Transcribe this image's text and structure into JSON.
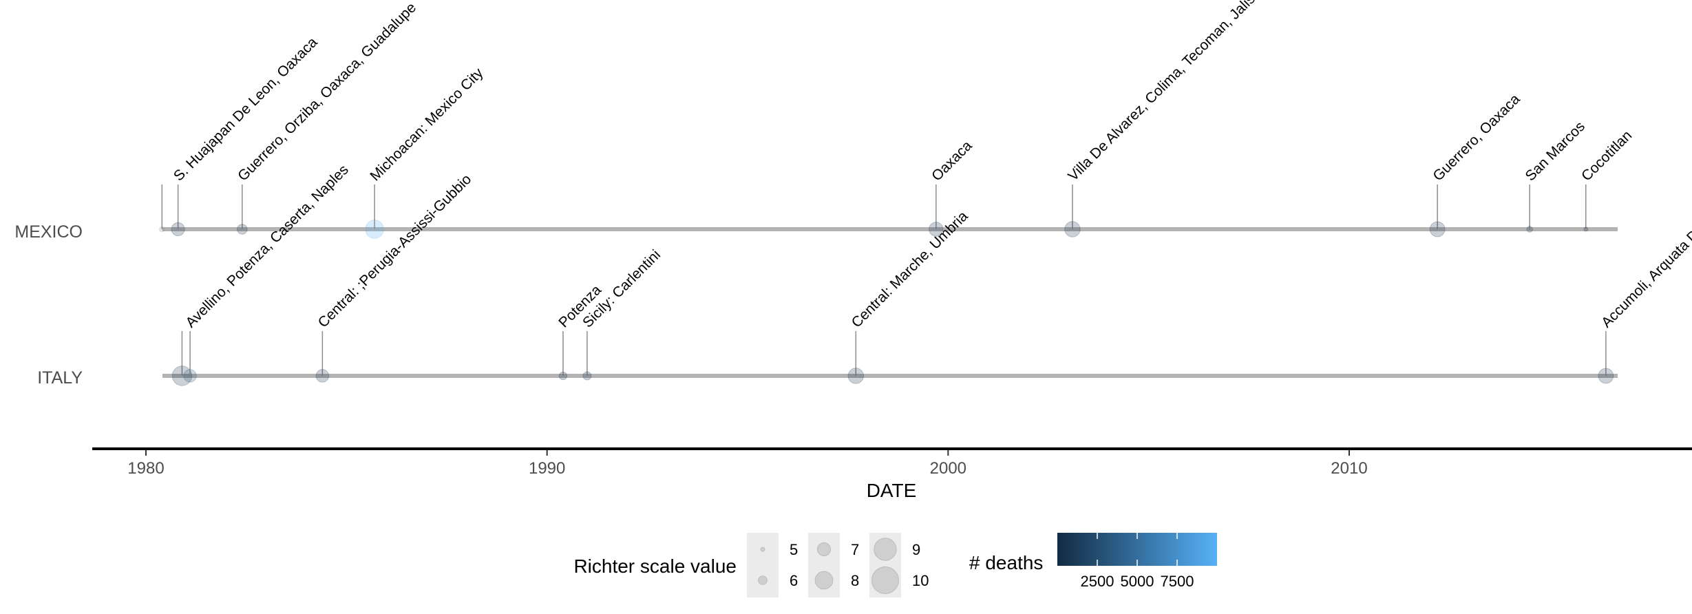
{
  "chart_data": {
    "type": "timeline",
    "xlabel": "DATE",
    "xlim": [
      1978.8,
      2018.6
    ],
    "x_ticks": [
      1980,
      1990,
      2000,
      2010
    ],
    "countries": [
      "MEXICO",
      "ITALY"
    ],
    "events": [
      {
        "country": "MEXICO",
        "date": 1980.4,
        "label": "",
        "richter": 5.2,
        "deaths": null
      },
      {
        "country": "MEXICO",
        "date": 1980.8,
        "label": "S. Huajapan De Leon, Oaxaca",
        "richter": 7.0,
        "deaths": 300
      },
      {
        "country": "MEXICO",
        "date": 1982.4,
        "label": "Guerrero, Orziba, Oaxaca, Guadalupe",
        "richter": 6.3,
        "deaths": 100
      },
      {
        "country": "MEXICO",
        "date": 1985.7,
        "label": "Michoacan:  Mexico City",
        "richter": 8.1,
        "deaths": 9500
      },
      {
        "country": "MEXICO",
        "date": 1999.7,
        "label": "Oaxaca",
        "richter": 7.2,
        "deaths": 35
      },
      {
        "country": "MEXICO",
        "date": 2003.1,
        "label": "Villa De Alvarez, Colima, Tecoman, Jalisco",
        "richter": 7.5,
        "deaths": 29
      },
      {
        "country": "MEXICO",
        "date": 2012.2,
        "label": "Guerrero, Oaxaca",
        "richter": 7.4,
        "deaths": 2
      },
      {
        "country": "MEXICO",
        "date": 2014.5,
        "label": "San Marcos",
        "richter": 5.4,
        "deaths": 1
      },
      {
        "country": "MEXICO",
        "date": 2015.9,
        "label": "Cocotitlan",
        "richter": 5.0,
        "deaths": 1
      },
      {
        "country": "ITALY",
        "date": 1980.9,
        "label": "",
        "richter": 8.4,
        "deaths": 300
      },
      {
        "country": "ITALY",
        "date": 1981.1,
        "label": "Avellino, Potenza, Caserta, Naples",
        "richter": 6.9,
        "deaths": 2735
      },
      {
        "country": "ITALY",
        "date": 1984.4,
        "label": "Central:  ;Perugia-Assissi-Gubbio",
        "richter": 6.9,
        "deaths": 3
      },
      {
        "country": "ITALY",
        "date": 1990.4,
        "label": "Potenza",
        "richter": 5.8,
        "deaths": 2
      },
      {
        "country": "ITALY",
        "date": 1991.0,
        "label": "Sicily:  Carlentini",
        "richter": 5.9,
        "deaths": 19
      },
      {
        "country": "ITALY",
        "date": 1997.7,
        "label": "Central:  Marche, Umbria",
        "richter": 7.5,
        "deaths": 11
      },
      {
        "country": "ITALY",
        "date": 2016.4,
        "label": "Accumoli, Arquata Del Tronto",
        "richter": 7.4,
        "deaths": 299
      }
    ],
    "legend": {
      "size": {
        "title": "Richter scale value",
        "items": [
          {
            "label": "5",
            "value": 5
          },
          {
            "label": "6",
            "value": 6
          },
          {
            "label": "7",
            "value": 7
          },
          {
            "label": "8",
            "value": 8
          },
          {
            "label": "9",
            "value": 9
          },
          {
            "label": "10",
            "value": 10
          }
        ]
      },
      "color": {
        "title": "# deaths",
        "ticks": [
          {
            "label": "2500",
            "value": 2500
          },
          {
            "label": "5000",
            "value": 5000
          },
          {
            "label": "7500",
            "value": 7500
          }
        ],
        "range": [
          0,
          10000
        ],
        "low_color": "#132B43",
        "high_color": "#56B1F7"
      }
    }
  }
}
